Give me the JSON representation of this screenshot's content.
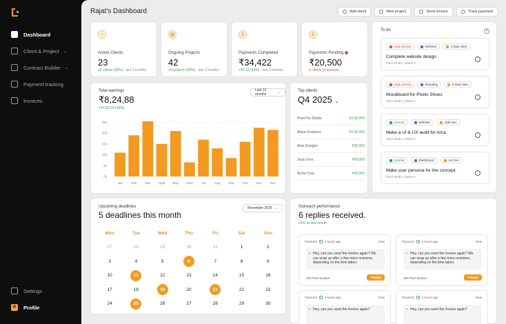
{
  "sidebar": {
    "items": [
      {
        "label": "Dashboard",
        "icon": "grid-icon",
        "active": true
      },
      {
        "label": "Client & Project",
        "icon": "users-icon",
        "chevron": true
      },
      {
        "label": "Contract Builder",
        "icon": "contract-icon",
        "chevron": true
      },
      {
        "label": "Payment tracking",
        "icon": "dollar-icon"
      },
      {
        "label": "Invoices",
        "icon": "file-icon"
      }
    ],
    "settings_label": "Settings",
    "profile_label": "Profile",
    "profile_initial": "R",
    "chevron_glyph": "⌄"
  },
  "header": {
    "title": "Rajat's Dashboard",
    "actions": [
      {
        "label": "Add client"
      },
      {
        "label": "New project"
      },
      {
        "label": "Send invoice"
      },
      {
        "label": "Track payment"
      }
    ]
  },
  "stats": [
    {
      "label": "Active Clients",
      "value": "23",
      "delta": "+6 clients (33%)",
      "period": "last 3 months",
      "trend": "pos"
    },
    {
      "label": "Ongoing Projects",
      "value": "42",
      "delta": "+9 projects (26%)",
      "period": "last 3 months",
      "trend": "pos"
    },
    {
      "label": "Payments Completed",
      "value": "₹34,422",
      "delta": "+₹6.33 (43%)",
      "period": "last 3 months",
      "trend": "pos"
    },
    {
      "label": "Payments Pending",
      "value": "₹20,500",
      "delta": "5 clients (4 invoices",
      "period": "",
      "trend": "neg",
      "warning": true
    }
  ],
  "earnings": {
    "label": "Total earnings",
    "value": "₹8,24,88",
    "delta": "+₹2,65,33 (43%)",
    "range": "Last 12 months"
  },
  "chart_data": {
    "type": "bar",
    "categories": [
      "Jan",
      "Feb",
      "Mar",
      "April",
      "May",
      "June",
      "Jul",
      "Aug",
      "Sep",
      "Oct",
      "Nov",
      "Dec"
    ],
    "values": [
      11,
      19,
      25.5,
      15,
      21,
      6.5,
      17,
      13,
      8.5,
      16,
      22.5,
      21.5
    ],
    "ytick_labels": [
      "25k",
      "20k",
      "15k",
      "10k",
      "5k",
      "0k"
    ],
    "ytick_values": [
      25,
      20,
      15,
      10,
      5,
      0
    ],
    "ylim": [
      0,
      28
    ],
    "bar_color": "#f29a21",
    "grid": true
  },
  "top_clients": {
    "label": "Top clients",
    "period": "Q4 2025",
    "rows": [
      {
        "name": "Pixel Pro Studio",
        "amount": "₹2,50,000"
      },
      {
        "name": "Maya Creatives",
        "amount": "₹1,50,000"
      },
      {
        "name": "Arka Designs",
        "amount": "₹90,000"
      },
      {
        "name": "Jack's Fox",
        "amount": "₹80,000"
      },
      {
        "name": "Acme Corp",
        "amount": "₹40,000"
      }
    ]
  },
  "todo": {
    "title": "To do",
    "plus": "+",
    "items": [
      {
        "priority": "High priority",
        "priority_type": "high",
        "category": "Website",
        "due": "3 days later",
        "title": "Complete website design.",
        "meta": "Pixel Studio | Week 3"
      },
      {
        "priority": "High priority",
        "priority_type": "high",
        "category": "Branding",
        "due": "8 days later",
        "title": "Moodboard for Pixels Shoes",
        "meta": "Pixel Studio | Week 2"
      },
      {
        "priority": "Normal",
        "priority_type": "normal",
        "category": "Website",
        "due": "16th Dec",
        "title": "Make a UI & UX audit for Arca.",
        "meta": "Pixel Studio | Week 3"
      },
      {
        "priority": "Normal",
        "priority_type": "normal",
        "category": "Dashboard",
        "due": "1st Dec",
        "title": "Make user persona for the concept.",
        "meta": "Pixel Studio | Week 3"
      }
    ]
  },
  "deadlines": {
    "label": "Upcoming deadlines",
    "title": "5 deadlines this month",
    "month": "November 2025",
    "weekdays": [
      "Mon",
      "Tue",
      "Wed",
      "Thu",
      "Fri",
      "Sat",
      "Sun"
    ],
    "weeks": [
      [
        {
          "d": "27",
          "dim": true
        },
        {
          "d": "28",
          "dim": true
        },
        {
          "d": "29",
          "dim": true
        },
        {
          "d": "30",
          "dim": true
        },
        {
          "d": "31",
          "dim": true
        },
        {
          "d": "1"
        },
        {
          "d": "2"
        }
      ],
      [
        {
          "d": "3"
        },
        {
          "d": "4"
        },
        {
          "d": "5"
        },
        {
          "d": "6",
          "hl": true
        },
        {
          "d": "7"
        },
        {
          "d": "8"
        },
        {
          "d": "9"
        }
      ],
      [
        {
          "d": "10"
        },
        {
          "d": "11",
          "hl": true
        },
        {
          "d": "12"
        },
        {
          "d": "13"
        },
        {
          "d": "14"
        },
        {
          "d": "15"
        },
        {
          "d": "16"
        }
      ],
      [
        {
          "d": "17"
        },
        {
          "d": "18"
        },
        {
          "d": "19",
          "hl": true
        },
        {
          "d": "20"
        },
        {
          "d": "21",
          "hl": true
        },
        {
          "d": "22"
        },
        {
          "d": "23"
        }
      ],
      [
        {
          "d": "24"
        },
        {
          "d": "25",
          "hl": true
        },
        {
          "d": "26"
        },
        {
          "d": "27"
        },
        {
          "d": "28"
        },
        {
          "d": "29"
        },
        {
          "d": "30"
        }
      ]
    ]
  },
  "outreach": {
    "label": "Outreach performance",
    "title": "6 replies received.",
    "delta": "+6% vs last month",
    "messages": [
      {
        "type": "Payment",
        "time": "2 hours ago",
        "view": "View",
        "body": "Hey, can you send the invoice again? We can wrap up after a few more revisions, depending on the time taken.",
        "from": "- Mri Pixel Studios",
        "reply": "Reply"
      },
      {
        "type": "Payment",
        "time": "2 hours ago",
        "view": "View",
        "body": "Hey, can you send the invoice again? We can wrap up after a few more revisions, depending on the time taken.",
        "from": "- Mri Pixel Studios",
        "reply": "Reply"
      },
      {
        "type": "Payment",
        "time": "2 hours ago",
        "view": "View",
        "body": "Hey, can you send the invoice again?",
        "from": "",
        "reply": ""
      },
      {
        "type": "Payment",
        "time": "2 hours ago",
        "view": "View",
        "body": "Hey, can you send the invoice again?",
        "from": "",
        "reply": ""
      }
    ]
  }
}
